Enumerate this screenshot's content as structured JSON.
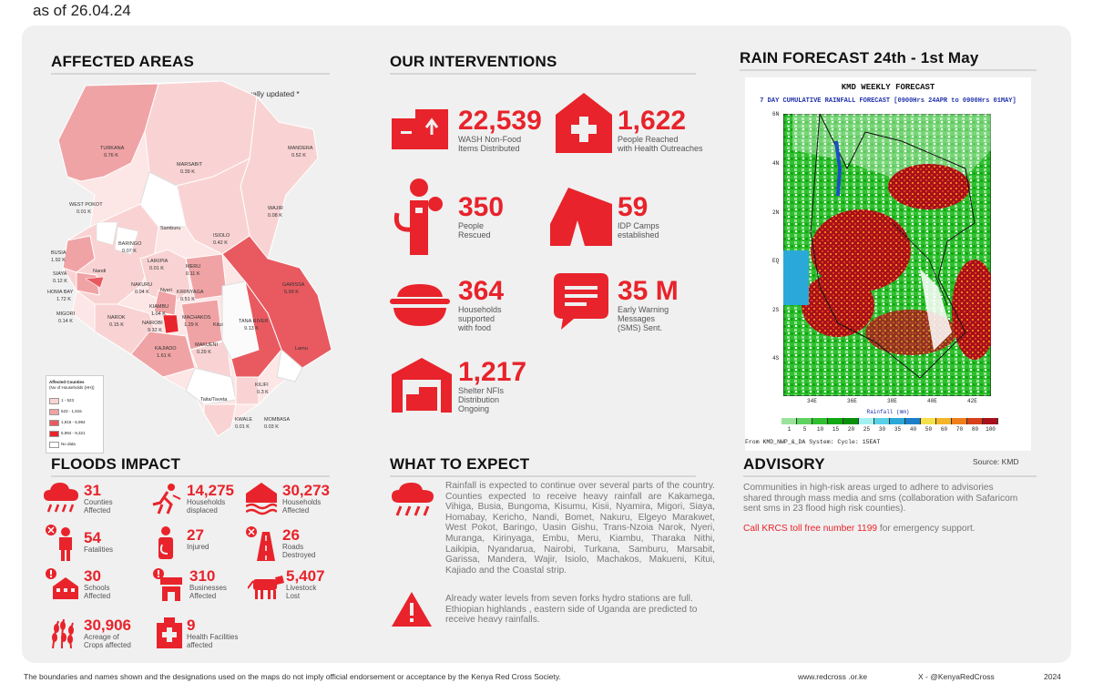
{
  "top_date": "as of 26.04.24",
  "sections": {
    "affected_areas": "AFFECTED AREAS",
    "interventions": "OUR INTERVENTIONS",
    "rain_forecast": "RAIN FORECAST 24th - 1st May",
    "floods_impact": "FLOODS IMPACT",
    "what_to_expect": "WHAT TO EXPECT",
    "advisory": "ADVISORY"
  },
  "map": {
    "note": "This map is continually updated *",
    "labels": [
      {
        "name": "TURKANA",
        "val": "0.76 K"
      },
      {
        "name": "MARSABIT",
        "val": "0.39 K"
      },
      {
        "name": "MANDERA",
        "val": "0.52 K"
      },
      {
        "name": "WEST POKOT",
        "val": "0.01 K"
      },
      {
        "name": "WAJIR",
        "val": "0.08 K"
      },
      {
        "name": "Samburu",
        "val": ""
      },
      {
        "name": "BARINGO",
        "val": "0.07 K"
      },
      {
        "name": "ISIOLO",
        "val": "0.42 K"
      },
      {
        "name": "BUSIA",
        "val": "1.92 K"
      },
      {
        "name": "SIAYA",
        "val": "0.12 K"
      },
      {
        "name": "LAIKIPIA",
        "val": "0.01 K"
      },
      {
        "name": "MERU",
        "val": "0.11 K"
      },
      {
        "name": "Nandi",
        "val": ""
      },
      {
        "name": "HOMA BAY",
        "val": "1.72 K"
      },
      {
        "name": "NAKURU",
        "val": "0.04 K"
      },
      {
        "name": "KIRINYAGA",
        "val": "0.51 K"
      },
      {
        "name": "Nyeri",
        "val": ""
      },
      {
        "name": "MIGORI",
        "val": "0.14 K"
      },
      {
        "name": "KIAMBU",
        "val": "1.04 K"
      },
      {
        "name": "NAROK",
        "val": "0.15 K"
      },
      {
        "name": "MACHAKOS",
        "val": "1.29 K"
      },
      {
        "name": "Kitui",
        "val": ""
      },
      {
        "name": "NAIROBI",
        "val": "9.32 K"
      },
      {
        "name": "TANA RIVER",
        "val": "9.13 K"
      },
      {
        "name": "GARISSA",
        "val": "5.99 K"
      },
      {
        "name": "KAJIADO",
        "val": "1.61 K"
      },
      {
        "name": "MAKUENI",
        "val": "0.29 K"
      },
      {
        "name": "Lamu",
        "val": ""
      },
      {
        "name": "Taita/Taveta",
        "val": ""
      },
      {
        "name": "KILIFI",
        "val": "0.3 K"
      },
      {
        "name": "KWALE",
        "val": "0.01 K"
      },
      {
        "name": "MOMBASA",
        "val": "0.03 K"
      }
    ],
    "legend": {
      "title": "Affected Counties",
      "subtitle": "(No of Households (HH))",
      "items": [
        {
          "label": "1 - 523",
          "color": "#f9d3d3"
        },
        {
          "label": "523 - 1,915",
          "color": "#f0a3a5"
        },
        {
          "label": "1,915 - 5,994",
          "color": "#e85a60"
        },
        {
          "label": "5,994 - 9,321",
          "color": "#e8232b"
        },
        {
          "label": "No data",
          "color": "#ffffff"
        }
      ]
    }
  },
  "interventions": [
    {
      "value": "22,539",
      "label1": "WASH Non-Food",
      "label2": "Items Distributed",
      "label3": "",
      "icon": "wash-items-icon"
    },
    {
      "value": "1,622",
      "label1": "People Reached",
      "label2": "with Health Outreaches",
      "label3": "",
      "icon": "health-house-icon"
    },
    {
      "value": "350",
      "label1": "People",
      "label2": "Rescued",
      "label3": "",
      "icon": "rescuer-icon"
    },
    {
      "value": "59",
      "label1": "IDP Camps",
      "label2": "established",
      "label3": "",
      "icon": "tent-icon"
    },
    {
      "value": "364",
      "label1": "Households",
      "label2": "supported",
      "label3": "with food",
      "icon": "food-bowl-icon"
    },
    {
      "value": "35 M",
      "label1": "Early Warning",
      "label2": "Messages",
      "label3": "(SMS) Sent.",
      "icon": "sms-icon"
    },
    {
      "value": "1,217",
      "label1": "Shelter NFIs",
      "label2": "Distribution",
      "label3": "Ongoing",
      "icon": "shelter-icon"
    }
  ],
  "impact": [
    {
      "value": "31",
      "l1": "Counties",
      "l2": "Affected",
      "icon": "rain-cloud-icon"
    },
    {
      "value": "14,275",
      "l1": "Households",
      "l2": "displaced",
      "icon": "person-running-icon"
    },
    {
      "value": "30,273",
      "l1": "Households",
      "l2": "Affected",
      "icon": "flooded-house-icon"
    },
    {
      "value": "54",
      "l1": "Fatalities",
      "l2": "",
      "icon": "fatality-icon"
    },
    {
      "value": "27",
      "l1": "Injured",
      "l2": "",
      "icon": "injured-icon"
    },
    {
      "value": "26",
      "l1": "Roads",
      "l2": "Destroyed",
      "icon": "road-icon"
    },
    {
      "value": "30",
      "l1": "Schools",
      "l2": "Affected",
      "icon": "school-icon"
    },
    {
      "value": "310",
      "l1": "Businesses",
      "l2": "Affected",
      "icon": "business-icon"
    },
    {
      "value": "5,407",
      "l1": "Livestock",
      "l2": "Lost",
      "icon": "cow-icon"
    },
    {
      "value": "30,906",
      "l1": "Acreage of",
      "l2": "Crops affected",
      "icon": "crops-icon"
    },
    {
      "value": "9",
      "l1": "Health Facilities",
      "l2": "affected",
      "icon": "hospital-icon"
    }
  ],
  "expect": {
    "para1": "Rainfall is expected to continue over several parts of the country. Counties expected to receive heavy rainfall are Kakamega, Vihiga, Busia, Bungoma, Kisumu, Kisii, Nyamira, Migori, Siaya, Homabay, Kericho, Nandi, Bomet, Nakuru, Elgeyo Marakwet, West Pokot, Baringo, Uasin Gishu, Trans-Nzoia Narok, Nyeri, Muranga, Kirinyaga, Embu, Meru, Kiambu, Tharaka Nithi, Laikipia, Nyandarua, Nairobi, Turkana, Samburu, Marsabit, Garissa, Mandera, Wajir, Isiolo, Machakos, Makueni, Kitui, Kajiado and the Coastal strip.",
    "para2": "Already water levels from seven forks hydro stations are full. Ethiopian highlands , eastern side of Uganda are predicted to receive heavy rainfalls."
  },
  "forecast": {
    "title": "KMD WEEKLY FORECAST",
    "subtitle": "7 DAY CUMULATIVE RAINFALL FORECAST [0900Hrs 24APR to 0900Hrs 01MAY]",
    "lat_ticks": [
      "6N",
      "4N",
      "2N",
      "EQ",
      "2S",
      "4S"
    ],
    "lon_ticks": [
      "34E",
      "36E",
      "38E",
      "40E",
      "42E"
    ],
    "colorbar_title": "Rainfall (mm)",
    "colorbar_ticks": [
      "1",
      "5",
      "10",
      "15",
      "20",
      "25",
      "30",
      "35",
      "40",
      "50",
      "60",
      "70",
      "80",
      "100"
    ],
    "colorbar_colors": [
      "#9be39b",
      "#5fd35f",
      "#2fbf2f",
      "#12a812",
      "#0a8f0a",
      "#a3f0f0",
      "#5ad0e8",
      "#2aa8d8",
      "#1a7fc8",
      "#f7e04a",
      "#f5b52a",
      "#ef7f1a",
      "#d8401a",
      "#a8101a"
    ],
    "from_line": "From KMD_NWP_&_DA System: Cycle: 15EAT",
    "source": "Source:   KMD"
  },
  "advisory": {
    "text": "Communities in high-risk areas urged to adhere to advisories shared through mass media and sms (collaboration with Safaricom sent sms in 23 flood high risk counties).",
    "call_red": "Call KRCS toll free number 1199",
    "call_rest": " for emergency support."
  },
  "footer": {
    "disclaimer": "The boundaries and names shown and the designations used on the maps do not imply official endorsement or acceptance by the Kenya Red Cross Society.",
    "web": "www.redcross      .or.ke",
    "social": "X - @KenyaRedCross",
    "year": "2024"
  },
  "colors": {
    "accent": "#e8232b",
    "panel": "#f0f0f0"
  }
}
